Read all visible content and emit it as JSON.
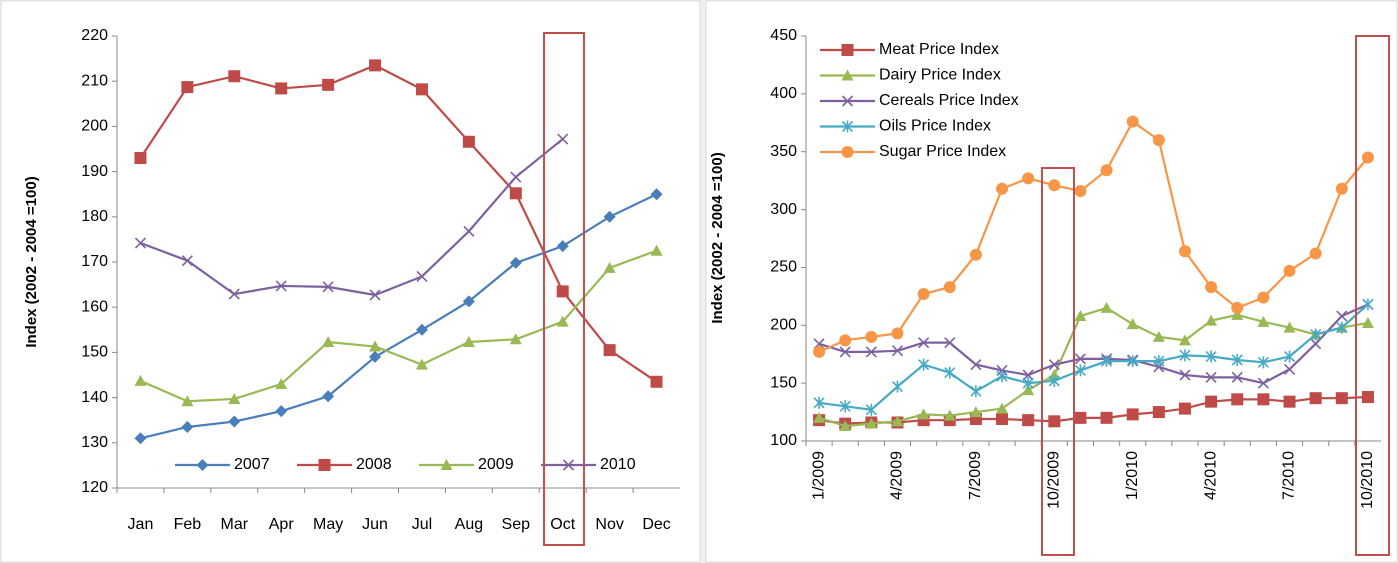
{
  "chart_data": [
    {
      "type": "line",
      "y_label": "Index (2002 - 2004 =100)",
      "categories": [
        "Jan",
        "Feb",
        "Mar",
        "Apr",
        "May",
        "Jun",
        "Jul",
        "Aug",
        "Sep",
        "Oct",
        "Nov",
        "Dec"
      ],
      "ylim": [
        120,
        220
      ],
      "yticks": [
        120,
        130,
        140,
        150,
        160,
        170,
        180,
        190,
        200,
        210,
        220
      ],
      "legend": "bottom",
      "series": [
        {
          "name": "2007",
          "color": "#4a7ebb",
          "marker": "diamond",
          "values": [
            131,
            133.5,
            134.7,
            137,
            140.3,
            149,
            155,
            161.3,
            169.8,
            173.5,
            180,
            185
          ]
        },
        {
          "name": "2008",
          "color": "#be4b48",
          "marker": "square",
          "values": [
            193,
            208.7,
            211.1,
            208.4,
            209.2,
            213.5,
            208.2,
            196.6,
            185.2,
            163.5,
            150.5,
            143.5
          ]
        },
        {
          "name": "2009",
          "color": "#98b954",
          "marker": "triangle",
          "values": [
            143.7,
            139.2,
            139.7,
            143,
            152.3,
            151.3,
            147.3,
            152.3,
            152.9,
            156.8,
            168.7,
            172.5
          ]
        },
        {
          "name": "2010",
          "color": "#7d60a0",
          "marker": "x",
          "values": [
            174.2,
            170.3,
            162.9,
            164.7,
            164.5,
            162.7,
            166.8,
            176.8,
            188.8,
            197.2,
            null,
            null
          ]
        }
      ]
    },
    {
      "type": "line",
      "y_label": "Index (2002 - 2004 =100)",
      "categories": [
        "1/2009",
        null,
        null,
        "4/2009",
        null,
        null,
        "7/2009",
        null,
        null,
        "10/2009",
        null,
        null,
        "1/2010",
        null,
        null,
        "4/2010",
        null,
        null,
        "7/2010",
        null,
        null,
        "10/2010"
      ],
      "ylim": [
        100,
        450
      ],
      "yticks": [
        100,
        150,
        200,
        250,
        300,
        350,
        400,
        450
      ],
      "legend": "upper left",
      "series": [
        {
          "name": "Meat Price Index",
          "color": "#be4b48",
          "marker": "square",
          "values": [
            118,
            115,
            116,
            116,
            118,
            118,
            119,
            119,
            118,
            117,
            120,
            120,
            123,
            125,
            128,
            134,
            136,
            136,
            134,
            137,
            137,
            138
          ]
        },
        {
          "name": "Dairy Price Index",
          "color": "#98b954",
          "marker": "triangle",
          "values": [
            120,
            113,
            115,
            117,
            123,
            122,
            125,
            128,
            144,
            157,
            208,
            215,
            201,
            190,
            187,
            204,
            209,
            203,
            198,
            192,
            198,
            202
          ]
        },
        {
          "name": "Cereals Price Index",
          "color": "#7d60a0",
          "marker": "x",
          "values": [
            184,
            177,
            177,
            178,
            185,
            185,
            166,
            161,
            157,
            166,
            171,
            171,
            170,
            164,
            157,
            155,
            155,
            150,
            162,
            184,
            208,
            218
          ]
        },
        {
          "name": "Oils Price Index",
          "color": "#46aac5",
          "marker": "asterisk",
          "values": [
            133,
            130,
            127,
            147,
            166,
            159,
            143,
            156,
            150,
            152,
            161,
            169,
            169,
            169,
            174,
            173,
            170,
            168,
            173,
            192,
            198,
            218
          ]
        },
        {
          "name": "Sugar Price Index",
          "color": "#f79646",
          "marker": "circle",
          "values": [
            177,
            187,
            190,
            193,
            227,
            233,
            261,
            318,
            327,
            321,
            316,
            334,
            376,
            360,
            264,
            233,
            215,
            224,
            247,
            262,
            318,
            345
          ]
        }
      ]
    }
  ]
}
